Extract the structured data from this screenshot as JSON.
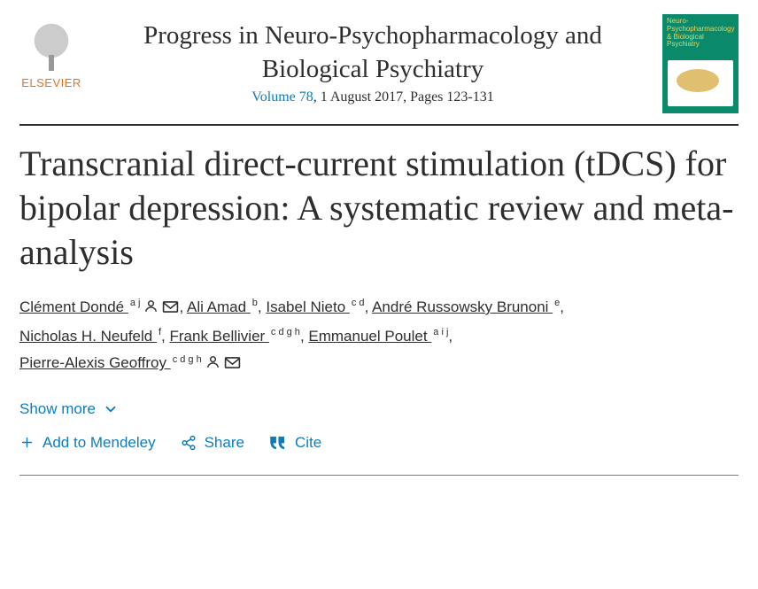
{
  "publisher": {
    "brand": "ELSEVIER",
    "brand_color": "#e9711c"
  },
  "journal": {
    "title": "Progress in Neuro-Psychopharmacology and Biological Psychiatry",
    "volume_link_text": "Volume 78",
    "date_pages": ", 1 August 2017, Pages 123-131",
    "cover_label": "Neuro-Psychopharmacology & Biological Psychiatry",
    "cover_bg": "#0a8a6b"
  },
  "article": {
    "title": "Transcranial direct-current stimulation (tDCS) for bipolar depression: A systematic review and meta-analysis"
  },
  "authors": [
    {
      "name": "Clément Dondé",
      "affs": "a j",
      "person": true,
      "mail": true,
      "sep": ", "
    },
    {
      "name": "Ali Amad",
      "affs": "b",
      "person": false,
      "mail": false,
      "sep": ", "
    },
    {
      "name": "Isabel Nieto",
      "affs": "c d",
      "person": false,
      "mail": false,
      "sep": ", "
    },
    {
      "name": "André Russowsky Brunoni",
      "affs": "e",
      "person": false,
      "mail": false,
      "sep": ", "
    },
    {
      "name": "Nicholas H. Neufeld",
      "affs": "f",
      "person": false,
      "mail": false,
      "sep": ", "
    },
    {
      "name": "Frank Bellivier",
      "affs": "c d g h",
      "person": false,
      "mail": false,
      "sep": ", "
    },
    {
      "name": "Emmanuel Poulet",
      "affs": "a i j",
      "person": false,
      "mail": false,
      "sep": ", "
    },
    {
      "name": "Pierre-Alexis Geoffroy",
      "affs": "c d g h",
      "person": true,
      "mail": true,
      "sep": ""
    }
  ],
  "controls": {
    "show_more": "Show more",
    "add_mendeley": "Add to Mendeley",
    "share": "Share",
    "cite": "Cite"
  },
  "colors": {
    "link": "#0c7dbb",
    "text": "#2e2e2e",
    "rule": "#2e2e2e"
  }
}
